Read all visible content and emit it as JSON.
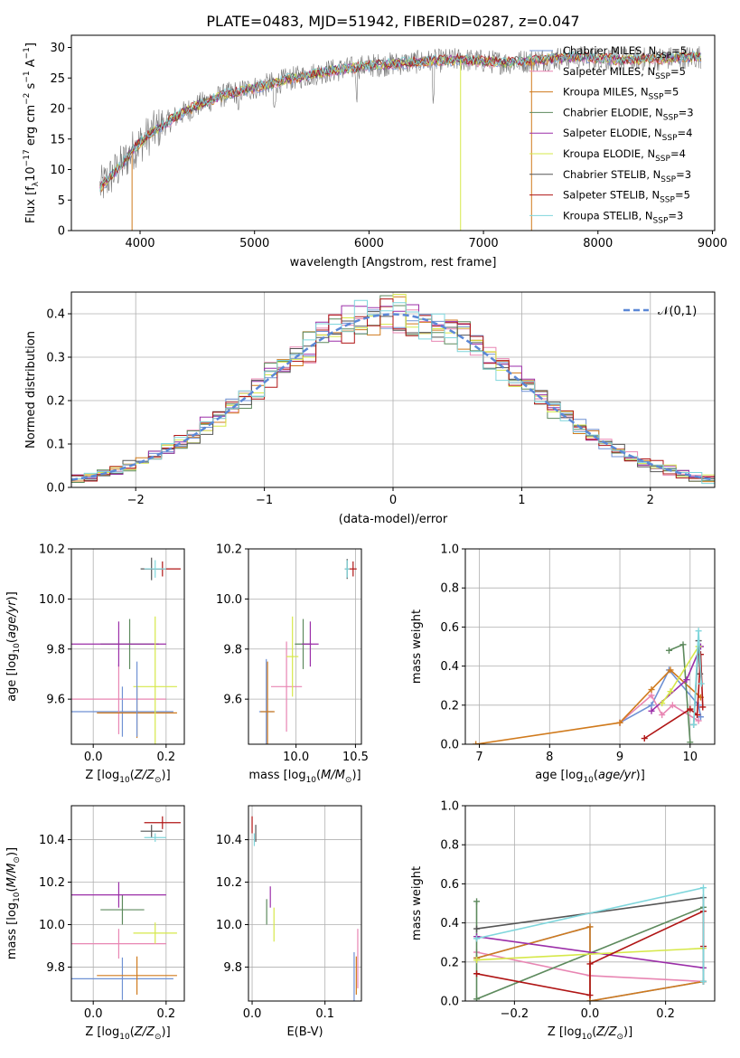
{
  "title": "PLATE=0483, MJD=51942, FIBERID=0287, z=0.047",
  "palette": {
    "Chabrier MILES": "#6f91d4",
    "Salpeter MILES": "#e886b3",
    "Kroupa MILES": "#d07a1c",
    "Chabrier ELODIE": "#5d8a5d",
    "Salpeter ELODIE": "#9b2ea8",
    "Kroupa ELODIE": "#d6e84a",
    "Chabrier STELIB": "#555555",
    "Salpeter STELIB": "#b01515",
    "Kroupa STELIB": "#7fd6dc"
  },
  "chart_data": [
    {
      "type": "line",
      "name": "spectrum",
      "xlabel": "wavelength [Angstrom, rest frame]",
      "ylabel": "Flux [f_λ10^-17 erg cm^-2 s^-1 A^-1]",
      "xlim": [
        3400,
        9020
      ],
      "ylim": [
        0,
        32
      ],
      "xticks": [
        "4000",
        "5000",
        "6000",
        "7000",
        "8000",
        "9000"
      ],
      "yticks": [
        "0",
        "5",
        "10",
        "15",
        "20",
        "25",
        "30"
      ],
      "grid": false,
      "legend_position": "right",
      "legend": [
        {
          "name": "Chabrier MILES",
          "nssp": "5"
        },
        {
          "name": "Salpeter MILES",
          "nssp": "5"
        },
        {
          "name": "Kroupa MILES",
          "nssp": "5"
        },
        {
          "name": "Chabrier ELODIE",
          "nssp": "3"
        },
        {
          "name": "Salpeter ELODIE",
          "nssp": "4"
        },
        {
          "name": "Kroupa ELODIE",
          "nssp": "4"
        },
        {
          "name": "Chabrier STELIB",
          "nssp": "3"
        },
        {
          "name": "Salpeter STELIB",
          "nssp": "5"
        },
        {
          "name": "Kroupa STELIB",
          "nssp": "3"
        }
      ],
      "continuum": [
        [
          3650,
          7
        ],
        [
          3750,
          9
        ],
        [
          3850,
          11
        ],
        [
          3950,
          13.5
        ],
        [
          4100,
          16
        ],
        [
          4300,
          18.5
        ],
        [
          4500,
          20.5
        ],
        [
          4700,
          22
        ],
        [
          4900,
          23
        ],
        [
          5100,
          23.8
        ],
        [
          5300,
          24.8
        ],
        [
          5600,
          26
        ],
        [
          6000,
          27
        ],
        [
          6400,
          27.6
        ],
        [
          6800,
          28
        ],
        [
          7200,
          27.5
        ],
        [
          7500,
          28
        ],
        [
          7800,
          28.5
        ],
        [
          8200,
          28
        ],
        [
          8600,
          28.2
        ],
        [
          8900,
          28.5
        ]
      ],
      "drops": [
        [
          3930,
          0
        ],
        [
          6800,
          0
        ],
        [
          7420,
          0
        ]
      ]
    },
    {
      "type": "bar",
      "name": "residual-histograms",
      "xlabel": "(data-model)/error",
      "ylabel": "Normed distribution",
      "xlim": [
        -2.5,
        2.5
      ],
      "ylim": [
        0,
        0.45
      ],
      "xticks": [
        "−2",
        "−1",
        "0",
        "1",
        "2"
      ],
      "yticks": [
        "0.0",
        "0.1",
        "0.2",
        "0.3",
        "0.4"
      ],
      "grid": true,
      "bin_width": 0.1,
      "reference": {
        "label": "𝒩(0,1)",
        "mean": 0,
        "sigma": 1,
        "style": "dashed"
      },
      "legend_position": "top-right"
    },
    {
      "type": "scatter",
      "name": "age-vs-Z",
      "xlabel": "Z [log10(Z/Z⊙)]",
      "ylabel": "age [log10(age/yr)]",
      "xlim": [
        -0.06,
        0.25
      ],
      "ylim": [
        9.42,
        10.2
      ],
      "xticks": [
        "0.0",
        "0.2"
      ],
      "yticks": [
        "9.6",
        "9.8",
        "10.0",
        "10.2"
      ],
      "grid": true,
      "points": [
        {
          "model": "Chabrier MILES",
          "x": 0.08,
          "xerr": 0.14,
          "y": 9.55,
          "yerr": 0.1
        },
        {
          "model": "Salpeter MILES",
          "x": 0.07,
          "xerr": 0.13,
          "y": 9.6,
          "yerr": 0.14
        },
        {
          "model": "Kroupa MILES",
          "x": 0.12,
          "xerr": 0.11,
          "y": 9.545,
          "yerr": 0.1
        },
        {
          "model": "Chabrier ELODIE",
          "x": 0.1,
          "xerr": 0.08,
          "y": 9.82,
          "yerr": 0.1
        },
        {
          "model": "Salpeter ELODIE",
          "x": 0.07,
          "xerr": 0.13,
          "y": 9.82,
          "yerr": 0.09
        },
        {
          "model": "Kroupa ELODIE",
          "x": 0.17,
          "xerr": 0.06,
          "y": 9.65,
          "yerr": 0.28
        },
        {
          "model": "Chabrier STELIB",
          "x": 0.16,
          "xerr": 0.03,
          "y": 10.12,
          "yerr": 0.045
        },
        {
          "model": "Salpeter STELIB",
          "x": 0.19,
          "xerr": 0.05,
          "y": 10.12,
          "yerr": 0.03
        },
        {
          "model": "Kroupa STELIB",
          "x": 0.17,
          "xerr": 0.03,
          "y": 10.12,
          "yerr": 0.035
        },
        {
          "model": "Chabrier MILES",
          "x": 0.12,
          "xerr": 0.0,
          "y": 9.6,
          "yerr": 0.15
        }
      ]
    },
    {
      "type": "scatter",
      "name": "age-vs-mass",
      "xlabel": "mass [log10(M/M⊙)]",
      "ylabel": "",
      "xlim": [
        9.6,
        10.55
      ],
      "ylim": [
        9.42,
        10.2
      ],
      "xticks": [
        "10.0",
        "10.5"
      ],
      "yticks": [
        "9.6",
        "9.8",
        "10.0",
        "10.2"
      ],
      "grid": true,
      "points": [
        {
          "model": "Chabrier MILES",
          "x": 9.75,
          "xerr": 0.06,
          "y": 9.55,
          "yerr": 0.21
        },
        {
          "model": "Salpeter MILES",
          "x": 9.92,
          "xerr": 0.13,
          "y": 9.65,
          "yerr": 0.18
        },
        {
          "model": "Kroupa MILES",
          "x": 9.76,
          "xerr": 0.06,
          "y": 9.55,
          "yerr": 0.2
        },
        {
          "model": "Chabrier ELODIE",
          "x": 10.06,
          "xerr": 0.07,
          "y": 9.82,
          "yerr": 0.1
        },
        {
          "model": "Salpeter ELODIE",
          "x": 10.12,
          "xerr": 0.07,
          "y": 9.82,
          "yerr": 0.09
        },
        {
          "model": "Kroupa ELODIE",
          "x": 9.97,
          "xerr": 0.05,
          "y": 9.77,
          "yerr": 0.16
        },
        {
          "model": "Chabrier STELIB",
          "x": 10.43,
          "xerr": 0.02,
          "y": 10.12,
          "yerr": 0.04
        },
        {
          "model": "Salpeter STELIB",
          "x": 10.48,
          "xerr": 0.03,
          "y": 10.12,
          "yerr": 0.03
        },
        {
          "model": "Kroupa STELIB",
          "x": 10.43,
          "xerr": 0.02,
          "y": 10.12,
          "yerr": 0.035
        }
      ]
    },
    {
      "type": "line",
      "name": "mass-weight-vs-age",
      "xlabel": "age [log10(age/yr)]",
      "ylabel": "mass weight",
      "xlim": [
        6.8,
        10.35
      ],
      "ylim": [
        0,
        1.0
      ],
      "xticks": [
        "7",
        "8",
        "9",
        "10"
      ],
      "yticks": [
        "0.0",
        "0.2",
        "0.4",
        "0.6",
        "0.8",
        "1.0"
      ],
      "grid": true,
      "series": [
        {
          "model": "Chabrier MILES",
          "points": [
            [
              9.0,
              0.11
            ],
            [
              9.45,
              0.2
            ],
            [
              9.7,
              0.38
            ],
            [
              10.12,
              0.2
            ],
            [
              10.15,
              0.14
            ]
          ]
        },
        {
          "model": "Salpeter MILES",
          "points": [
            [
              9.0,
              0.11
            ],
            [
              9.45,
              0.25
            ],
            [
              9.6,
              0.15
            ],
            [
              9.75,
              0.2
            ],
            [
              10.12,
              0.12
            ]
          ]
        },
        {
          "model": "Kroupa MILES",
          "points": [
            [
              6.95,
              0.0
            ],
            [
              9.0,
              0.11
            ],
            [
              9.45,
              0.28
            ],
            [
              9.72,
              0.38
            ],
            [
              10.15,
              0.24
            ]
          ]
        },
        {
          "model": "Chabrier ELODIE",
          "points": [
            [
              9.7,
              0.48
            ],
            [
              9.9,
              0.51
            ],
            [
              10.0,
              0.01
            ]
          ]
        },
        {
          "model": "Salpeter ELODIE",
          "points": [
            [
              9.45,
              0.17
            ],
            [
              9.95,
              0.33
            ],
            [
              10.15,
              0.5
            ]
          ]
        },
        {
          "model": "Kroupa ELODIE",
          "points": [
            [
              9.6,
              0.21
            ],
            [
              9.72,
              0.27
            ],
            [
              10.12,
              0.5
            ]
          ]
        },
        {
          "model": "Chabrier STELIB",
          "points": [
            [
              10.05,
              0.1
            ],
            [
              10.12,
              0.53
            ],
            [
              10.14,
              0.36
            ]
          ]
        },
        {
          "model": "Salpeter STELIB",
          "points": [
            [
              9.35,
              0.03
            ],
            [
              10.0,
              0.18
            ],
            [
              10.1,
              0.15
            ],
            [
              10.15,
              0.46
            ],
            [
              10.18,
              0.19
            ]
          ]
        },
        {
          "model": "Kroupa STELIB",
          "points": [
            [
              10.05,
              0.1
            ],
            [
              10.12,
              0.58
            ],
            [
              10.16,
              0.31
            ]
          ]
        }
      ]
    },
    {
      "type": "scatter",
      "name": "mass-vs-Z",
      "xlabel": "Z [log10(Z/Z⊙)]",
      "ylabel": "mass [log10(M/M⊙)]",
      "xlim": [
        -0.06,
        0.25
      ],
      "ylim": [
        9.64,
        10.56
      ],
      "xticks": [
        "0.0",
        "0.2"
      ],
      "yticks": [
        "9.8",
        "10.0",
        "10.2",
        "10.4"
      ],
      "grid": true,
      "points": [
        {
          "model": "Chabrier MILES",
          "x": 0.08,
          "xerr": 0.14,
          "y": 9.745,
          "yerr": 0.1
        },
        {
          "model": "Salpeter MILES",
          "x": 0.07,
          "xerr": 0.13,
          "y": 9.91,
          "yerr": 0.07
        },
        {
          "model": "Kroupa MILES",
          "x": 0.12,
          "xerr": 0.11,
          "y": 9.76,
          "yerr": 0.09
        },
        {
          "model": "Chabrier ELODIE",
          "x": 0.08,
          "xerr": 0.06,
          "y": 10.07,
          "yerr": 0.07
        },
        {
          "model": "Salpeter ELODIE",
          "x": 0.07,
          "xerr": 0.13,
          "y": 10.14,
          "yerr": 0.06
        },
        {
          "model": "Kroupa ELODIE",
          "x": 0.17,
          "xerr": 0.06,
          "y": 9.96,
          "yerr": 0.05
        },
        {
          "model": "Chabrier STELIB",
          "x": 0.16,
          "xerr": 0.03,
          "y": 10.44,
          "yerr": 0.03
        },
        {
          "model": "Salpeter STELIB",
          "x": 0.19,
          "xerr": 0.05,
          "y": 10.48,
          "yerr": 0.03
        },
        {
          "model": "Kroupa STELIB",
          "x": 0.17,
          "xerr": 0.03,
          "y": 10.41,
          "yerr": 0.02
        }
      ]
    },
    {
      "type": "scatter",
      "name": "mass-vs-EBV",
      "xlabel": "E(B-V)",
      "ylabel": "",
      "xlim": [
        -0.005,
        0.15
      ],
      "ylim": [
        9.64,
        10.56
      ],
      "xticks": [
        "0.0",
        "0.1"
      ],
      "yticks": [
        "9.8",
        "10.0",
        "10.2",
        "10.4"
      ],
      "grid": true,
      "points": [
        {
          "model": "Chabrier MILES",
          "x": 0.14,
          "xerr": 0.0,
          "y": 9.74,
          "yerr": 0.13
        },
        {
          "model": "Salpeter MILES",
          "x": 0.145,
          "xerr": 0.0,
          "y": 9.84,
          "yerr": 0.14
        },
        {
          "model": "Kroupa MILES",
          "x": 0.143,
          "xerr": 0.0,
          "y": 9.76,
          "yerr": 0.09
        },
        {
          "model": "Chabrier ELODIE",
          "x": 0.02,
          "xerr": 0.0,
          "y": 10.06,
          "yerr": 0.06
        },
        {
          "model": "Salpeter ELODIE",
          "x": 0.025,
          "xerr": 0.0,
          "y": 10.13,
          "yerr": 0.05
        },
        {
          "model": "Kroupa ELODIE",
          "x": 0.03,
          "xerr": 0.0,
          "y": 10.0,
          "yerr": 0.08
        },
        {
          "model": "Chabrier STELIB",
          "x": 0.005,
          "xerr": 0.0,
          "y": 10.43,
          "yerr": 0.04
        },
        {
          "model": "Salpeter STELIB",
          "x": 0.0,
          "xerr": 0.0,
          "y": 10.47,
          "yerr": 0.04
        },
        {
          "model": "Kroupa STELIB",
          "x": 0.003,
          "xerr": 0.0,
          "y": 10.4,
          "yerr": 0.03
        }
      ]
    },
    {
      "type": "line",
      "name": "mass-weight-vs-Z",
      "xlabel": "Z [log10(Z/Z⊙)]",
      "ylabel": "mass weight",
      "xlim": [
        -0.33,
        0.33
      ],
      "ylim": [
        0,
        1.0
      ],
      "xticks": [
        "−0.2",
        "0.0",
        "0.2"
      ],
      "yticks": [
        "0.0",
        "0.2",
        "0.4",
        "0.6",
        "0.8",
        "1.0"
      ],
      "grid": true,
      "series": [
        {
          "model": "Chabrier MILES",
          "points": [
            [
              -0.3,
              0.22
            ],
            [
              0.0,
              0.38
            ],
            [
              0.0,
              0.0
            ],
            [
              0.3,
              0.1
            ]
          ]
        },
        {
          "model": "Salpeter MILES",
          "points": [
            [
              -0.3,
              0.25
            ],
            [
              0.0,
              0.13
            ],
            [
              0.3,
              0.1
            ]
          ]
        },
        {
          "model": "Kroupa MILES",
          "points": [
            [
              -0.3,
              0.22
            ],
            [
              0.0,
              0.38
            ],
            [
              0.0,
              0.0
            ],
            [
              0.3,
              0.1
            ]
          ]
        },
        {
          "model": "Chabrier ELODIE",
          "points": [
            [
              -0.3,
              0.51
            ],
            [
              -0.3,
              0.01
            ],
            [
              0.3,
              0.48
            ]
          ]
        },
        {
          "model": "Salpeter ELODIE",
          "points": [
            [
              -0.3,
              0.33
            ],
            [
              0.3,
              0.17
            ]
          ]
        },
        {
          "model": "Kroupa ELODIE",
          "points": [
            [
              -0.3,
              0.21
            ],
            [
              0.3,
              0.27
            ]
          ]
        },
        {
          "model": "Chabrier STELIB",
          "points": [
            [
              -0.3,
              0.37
            ],
            [
              0.3,
              0.53
            ],
            [
              0.3,
              0.1
            ]
          ]
        },
        {
          "model": "Salpeter STELIB",
          "points": [
            [
              -0.3,
              0.14
            ],
            [
              0.0,
              0.03
            ],
            [
              0.0,
              0.19
            ],
            [
              0.3,
              0.46
            ],
            [
              0.3,
              0.28
            ]
          ]
        },
        {
          "model": "Kroupa STELIB",
          "points": [
            [
              -0.3,
              0.32
            ],
            [
              0.3,
              0.58
            ],
            [
              0.3,
              0.1
            ]
          ]
        }
      ]
    }
  ]
}
